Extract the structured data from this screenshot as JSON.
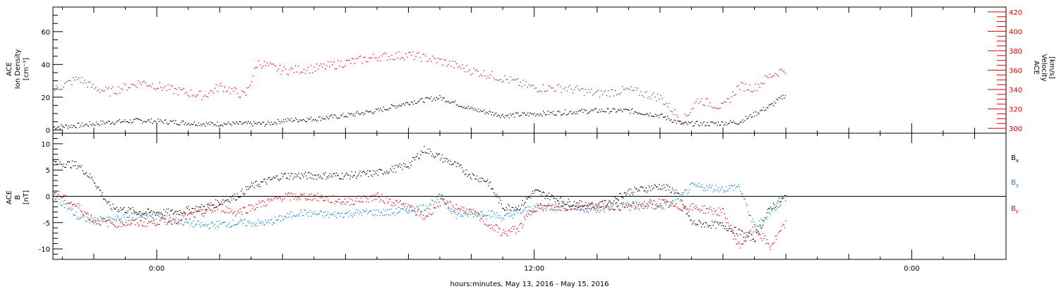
{
  "xlabel": "hours:minutes, May 13, 2016 - May 15, 2016",
  "time_tick_labels": [
    "0:00",
    "12:00",
    "0:00"
  ],
  "colors": {
    "axis": "#000000",
    "density": "#000000",
    "velocity": "#dd0000",
    "bx": "#000000",
    "by": "#1080d8",
    "bz": "#dd0000"
  },
  "chart_data": [
    {
      "type": "scatter",
      "panel": "plasma",
      "ylabel_left": [
        "ACE",
        "Ion Density",
        "[cm⁻³]"
      ],
      "ylabel_right": [
        "ACE",
        "Velocity",
        "[km/s]"
      ],
      "x_unit": "hours since 2016-05-13 00:00",
      "xlim": [
        -3.3,
        27.0
      ],
      "ylim_left": [
        -2,
        75
      ],
      "yticks_left": [
        0,
        20,
        40,
        60
      ],
      "ylim_right": [
        295,
        425
      ],
      "yticks_right": [
        300,
        320,
        340,
        360,
        380,
        400,
        420
      ],
      "grid": false,
      "series": [
        {
          "name": "Ion Density",
          "axis": "left",
          "color": "#000000",
          "x": [
            -3.3,
            -2.5,
            -1.5,
            -0.5,
            0.5,
            1.5,
            2.5,
            3.5,
            4.0,
            5.0,
            6.0,
            7.0,
            8.0,
            9.0,
            10.0,
            11.0,
            12.0,
            13.0,
            14.0,
            15.0,
            16.0,
            16.7,
            17.5,
            18.5,
            19.5,
            20.0
          ],
          "y": [
            2,
            3,
            5,
            6,
            5,
            4,
            4,
            4,
            6,
            7,
            9,
            12,
            17,
            20,
            13,
            9,
            10,
            11,
            12,
            12,
            9,
            4,
            4,
            5,
            15,
            22
          ]
        },
        {
          "name": "Velocity",
          "axis": "right",
          "color": "#dd0000",
          "x": [
            -3.3,
            -2.5,
            -2.0,
            -1.5,
            -0.5,
            0.5,
            1.5,
            2.0,
            2.8,
            3.2,
            4.0,
            5.0,
            6.0,
            7.0,
            8.0,
            9.0,
            10.0,
            11.0,
            12.0,
            13.0,
            14.0,
            15.0,
            16.0,
            16.7,
            17.2,
            18.0,
            18.5,
            19.0,
            19.5,
            20.0
          ],
          "y": [
            340,
            352,
            342,
            338,
            348,
            340,
            334,
            344,
            334,
            368,
            360,
            362,
            368,
            374,
            376,
            370,
            360,
            352,
            342,
            342,
            336,
            340,
            332,
            308,
            330,
            322,
            344,
            342,
            355,
            362
          ]
        }
      ]
    },
    {
      "type": "scatter",
      "panel": "imf",
      "ylabel_left": [
        "ACE",
        "B",
        "[nT]"
      ],
      "x_unit": "hours since 2016-05-13 00:00",
      "xlim": [
        -3.3,
        27.0
      ],
      "ylim": [
        -12,
        12
      ],
      "yticks": [
        -10,
        -5,
        0,
        5,
        10
      ],
      "zero_line": true,
      "grid": false,
      "legend": {
        "position": "right",
        "entries": [
          "Bx",
          "By",
          "Bz"
        ]
      },
      "series": [
        {
          "name": "Bx",
          "color": "#000000",
          "x": [
            -3.3,
            -2.5,
            -2.0,
            -1.5,
            -0.5,
            0.5,
            1.5,
            2.5,
            3.0,
            3.5,
            4.0,
            5.0,
            6.0,
            7.0,
            8.0,
            8.5,
            9.5,
            10.0,
            10.5,
            11.0,
            11.5,
            12.0,
            13.0,
            14.0,
            15.0,
            16.0,
            16.5,
            17.0,
            18.0,
            19.0,
            19.5,
            20.0
          ],
          "y": [
            6.5,
            6.0,
            3.0,
            -2.0,
            -3.0,
            -3.0,
            -2.0,
            0.0,
            2.0,
            3.0,
            4.0,
            4.0,
            4.0,
            4.5,
            6.0,
            9.0,
            6.0,
            4.0,
            3.0,
            -2.0,
            -2.0,
            1.0,
            -1.0,
            -2.0,
            1.0,
            2.0,
            1.0,
            -5.0,
            -5.5,
            -8.0,
            -2.0,
            0.0
          ]
        },
        {
          "name": "By",
          "color": "#1080d8",
          "x": [
            -3.3,
            -2.5,
            -2.0,
            -1.5,
            -0.5,
            0.5,
            1.5,
            2.5,
            3.5,
            4.5,
            5.5,
            6.5,
            7.5,
            8.5,
            9.0,
            9.5,
            10.5,
            11.0,
            12.0,
            13.0,
            14.0,
            15.0,
            16.0,
            16.5,
            17.0,
            18.0,
            18.5,
            19.0,
            19.5,
            20.0
          ],
          "y": [
            0.5,
            -4.0,
            -4.5,
            -4.5,
            -3.5,
            -4.5,
            -5.5,
            -5.0,
            -5.0,
            -3.0,
            -3.5,
            -3.0,
            -3.0,
            -2.0,
            0.0,
            -3.5,
            -3.0,
            -4.0,
            -2.0,
            -2.0,
            -2.5,
            -1.5,
            -2.0,
            -1.0,
            2.0,
            1.5,
            2.0,
            -6.0,
            -3.0,
            0.0
          ]
        },
        {
          "name": "Bz",
          "color": "#dd0000",
          "x": [
            -3.3,
            -2.5,
            -2.0,
            -1.5,
            -0.5,
            0.5,
            1.5,
            2.0,
            2.5,
            3.0,
            4.0,
            5.0,
            6.0,
            7.0,
            8.0,
            8.5,
            9.0,
            9.5,
            10.0,
            11.0,
            11.5,
            12.0,
            13.0,
            14.0,
            15.0,
            16.0,
            16.5,
            17.0,
            18.0,
            18.5,
            19.0,
            19.5,
            20.0
          ],
          "y": [
            1.0,
            -2.0,
            -4.5,
            -5.0,
            -5.0,
            -4.5,
            -3.0,
            -2.0,
            -3.0,
            -2.0,
            0.0,
            0.0,
            -1.0,
            0.0,
            -2.0,
            -4.0,
            -1.0,
            -2.0,
            -3.0,
            -7.0,
            -6.0,
            -2.0,
            -2.0,
            -1.5,
            -2.0,
            -1.0,
            -2.0,
            -2.0,
            -3.0,
            -9.5,
            -6.0,
            -9.5,
            -5.0
          ]
        }
      ]
    }
  ]
}
